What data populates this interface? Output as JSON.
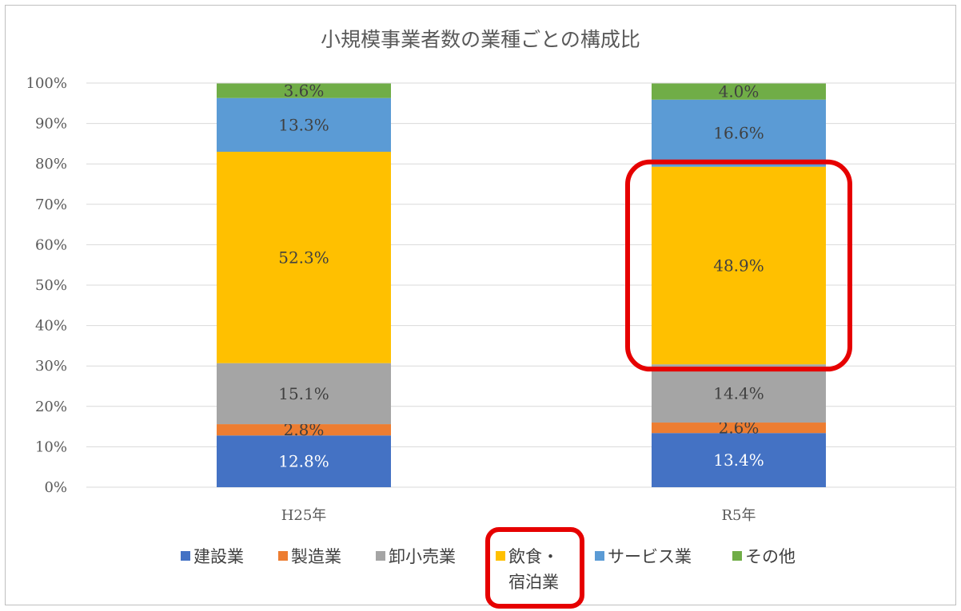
{
  "chart_data": {
    "type": "bar",
    "stacked": true,
    "percent": true,
    "title": "小規模事業者数の業種ごとの構成比",
    "categories": [
      "H25年",
      "R5年"
    ],
    "yticks": [
      "0%",
      "10%",
      "20%",
      "30%",
      "40%",
      "50%",
      "60%",
      "70%",
      "80%",
      "90%",
      "100%"
    ],
    "ylim": [
      0,
      100
    ],
    "grid": true,
    "legend_position": "bottom",
    "series": [
      {
        "name": "建設業",
        "values": [
          12.8,
          13.4
        ],
        "labels": [
          "12.8%",
          "13.4%"
        ],
        "color": "#4472c4",
        "label_color": "#ffffff"
      },
      {
        "name": "製造業",
        "values": [
          2.8,
          2.6
        ],
        "labels": [
          "2.8%",
          "2.6%"
        ],
        "color": "#ed7d31",
        "label_color": "#404040"
      },
      {
        "name": "卸小売業",
        "values": [
          15.1,
          14.4
        ],
        "labels": [
          "15.1%",
          "14.4%"
        ],
        "color": "#a5a5a5",
        "label_color": "#404040"
      },
      {
        "name": "飲食・宿泊業",
        "values": [
          52.3,
          48.9
        ],
        "labels": [
          "52.3%",
          "48.9%"
        ],
        "color": "#ffc000",
        "label_color": "#404040"
      },
      {
        "name": "サービス業",
        "values": [
          13.3,
          16.6
        ],
        "labels": [
          "13.3%",
          "16.6%"
        ],
        "color": "#5b9bd5",
        "label_color": "#404040"
      },
      {
        "name": "その他",
        "values": [
          3.6,
          4.0
        ],
        "labels": [
          "3.6%",
          "4.0%"
        ],
        "color": "#70ad47",
        "label_color": "#404040"
      }
    ],
    "legend": [
      {
        "lines": [
          "建設業"
        ]
      },
      {
        "lines": [
          "製造業"
        ]
      },
      {
        "lines": [
          "卸小売業"
        ]
      },
      {
        "lines": [
          "飲食・",
          "宿泊業"
        ]
      },
      {
        "lines": [
          "サービス業"
        ]
      },
      {
        "lines": [
          "その他"
        ]
      }
    ],
    "highlights": [
      "R5年 飲食・宿泊業 48.9%",
      "飲食・宿泊業 legend entry"
    ],
    "highlight_color": "#e60000"
  }
}
